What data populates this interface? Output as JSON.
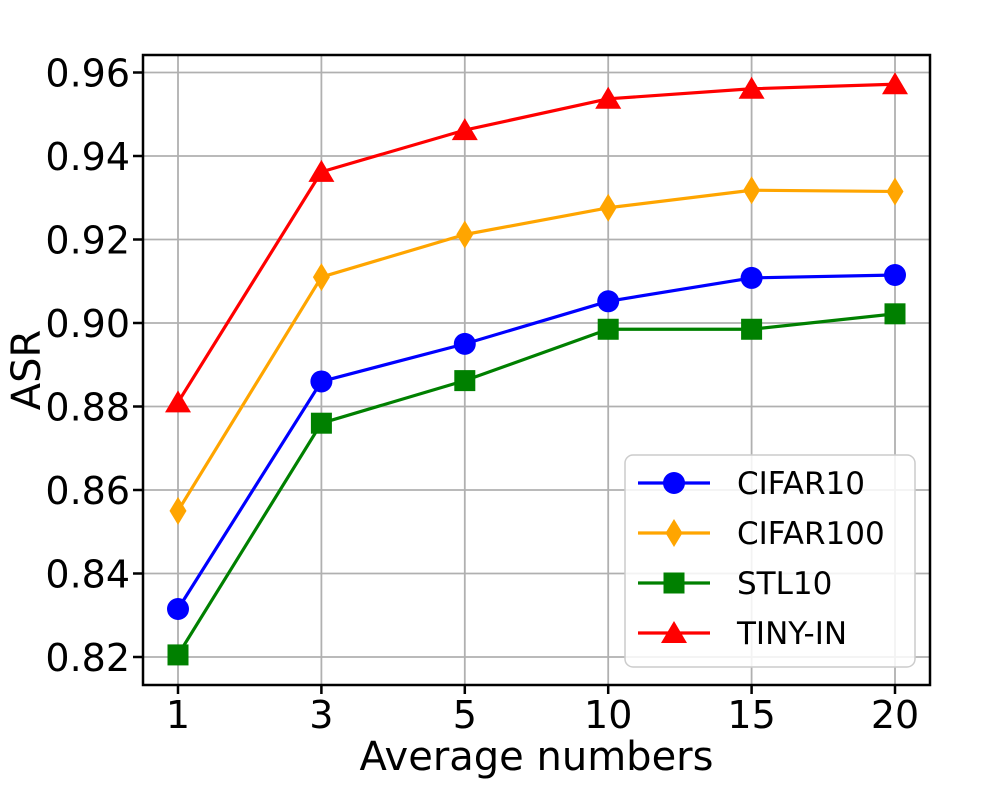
{
  "figure": {
    "background": "#ffffff",
    "axis_color": "#000000",
    "grid_color": "#b0b0b0"
  },
  "chart_data": {
    "type": "line",
    "title": "",
    "xlabel": "Average numbers",
    "ylabel": "ASR",
    "categories": [
      "1",
      "3",
      "5",
      "10",
      "15",
      "20"
    ],
    "x_values": [
      1,
      3,
      5,
      10,
      15,
      20
    ],
    "y_ticks": [
      "0.82",
      "0.84",
      "0.86",
      "0.88",
      "0.90",
      "0.92",
      "0.94",
      "0.96"
    ],
    "ylim": [
      0.8133,
      0.9642
    ],
    "grid": true,
    "legend_position": "lower-right-inside",
    "series": [
      {
        "name": "CIFAR10",
        "color": "#0000ff",
        "marker": "circle",
        "values": [
          0.8315,
          0.886,
          0.895,
          0.9052,
          0.9108,
          0.9115
        ]
      },
      {
        "name": "CIFAR100",
        "color": "#ffa500",
        "marker": "diamond",
        "values": [
          0.855,
          0.911,
          0.9212,
          0.9276,
          0.9318,
          0.9315
        ]
      },
      {
        "name": "STL10",
        "color": "#008000",
        "marker": "square",
        "values": [
          0.8205,
          0.876,
          0.8862,
          0.8985,
          0.8985,
          0.9022
        ]
      },
      {
        "name": "TINY-IN",
        "color": "#ff0000",
        "marker": "triangle",
        "values": [
          0.881,
          0.9362,
          0.9462,
          0.9537,
          0.9561,
          0.9572
        ]
      }
    ],
    "legend_labels": [
      "CIFAR10",
      "CIFAR100",
      "STL10",
      "TINY-IN"
    ]
  }
}
